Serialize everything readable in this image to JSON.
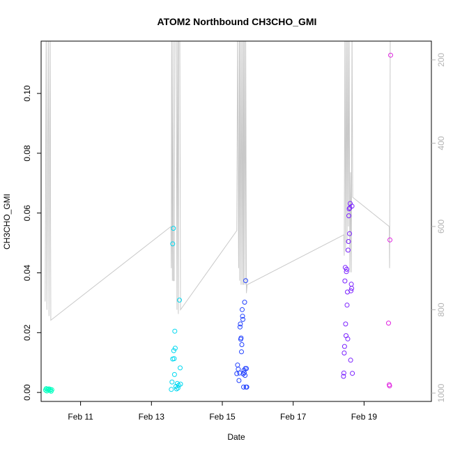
{
  "chart_data": {
    "type": "scatter",
    "title": "ATOM2 Northbound CH3CHO_GMI",
    "xlabel": "Date",
    "ylabel": "CH3CHO_GMI",
    "x_ticks": [
      "Feb 11",
      "Feb 13",
      "Feb 15",
      "Feb 17",
      "Feb 19"
    ],
    "y_ticks": [
      "0.00",
      "0.02",
      "0.04",
      "0.06",
      "0.08",
      "0.10"
    ],
    "y2_ticks": [
      "200",
      "400",
      "600",
      "800",
      "1000"
    ],
    "y2_reversed": true,
    "xlim": [
      "Feb 9 21:17",
      "Feb 20 21:36"
    ],
    "ylim": [
      -0.003,
      0.1175
    ],
    "y2lim": [
      1020,
      155
    ],
    "grid": false,
    "series": [
      {
        "kind": "points",
        "points": [
          {
            "x": "Feb 10 00:14",
            "y": 0.0008,
            "color": "#00ffc0"
          },
          {
            "x": "Feb 10 00:43",
            "y": 0.0013,
            "color": "#00ffc0"
          },
          {
            "x": "Feb 10 01:12",
            "y": 0.0005,
            "color": "#00ffc0"
          },
          {
            "x": "Feb 10 01:26",
            "y": 0.0011,
            "color": "#00ffc0"
          },
          {
            "x": "Feb 10 02:10",
            "y": 0.0009,
            "color": "#00ffc0"
          },
          {
            "x": "Feb 10 02:38",
            "y": 0.0012,
            "color": "#00ffc0"
          },
          {
            "x": "Feb 10 03:07",
            "y": 0.0007,
            "color": "#00ffc0"
          },
          {
            "x": "Feb 10 03:36",
            "y": 0.001,
            "color": "#00ffc0"
          },
          {
            "x": "Feb 10 04:05",
            "y": 0.0004,
            "color": "#00ffc0"
          },
          {
            "x": "Feb 10 04:34",
            "y": 0.0009,
            "color": "#00ffc0"
          },
          {
            "x": "Feb 13 13:26",
            "y": 0.001,
            "color": "#00d8f0"
          },
          {
            "x": "Feb 13 13:55",
            "y": 0.0035,
            "color": "#00d8f0"
          },
          {
            "x": "Feb 13 14:24",
            "y": 0.0112,
            "color": "#00d8f0"
          },
          {
            "x": "Feb 13 14:24",
            "y": 0.0497,
            "color": "#00d8f0"
          },
          {
            "x": "Feb 13 14:53",
            "y": 0.0549,
            "color": "#00d8f0"
          },
          {
            "x": "Feb 13 15:07",
            "y": 0.014,
            "color": "#00d8f0"
          },
          {
            "x": "Feb 13 15:22",
            "y": 0.0113,
            "color": "#00d8f0"
          },
          {
            "x": "Feb 13 15:36",
            "y": 0.006,
            "color": "#00d8f0"
          },
          {
            "x": "Feb 13 15:50",
            "y": 0.0205,
            "color": "#00d8f0"
          },
          {
            "x": "Feb 13 16:05",
            "y": 0.0148,
            "color": "#00d8f0"
          },
          {
            "x": "Feb 13 16:34",
            "y": 0.002,
            "color": "#00d8f0"
          },
          {
            "x": "Feb 13 17:02",
            "y": 0.0012,
            "color": "#00d8f0"
          },
          {
            "x": "Feb 13 17:31",
            "y": 0.003,
            "color": "#00d8f0"
          },
          {
            "x": "Feb 13 18:00",
            "y": 0.0015,
            "color": "#00d8f0"
          },
          {
            "x": "Feb 13 18:29",
            "y": 0.0024,
            "color": "#00d8f0"
          },
          {
            "x": "Feb 13 18:58",
            "y": 0.0309,
            "color": "#00d8f0"
          },
          {
            "x": "Feb 13 19:26",
            "y": 0.0082,
            "color": "#00d8f0"
          },
          {
            "x": "Feb 13 19:41",
            "y": 0.0028,
            "color": "#00d8f0"
          },
          {
            "x": "Feb 15 09:50",
            "y": 0.0063,
            "color": "#2040ff"
          },
          {
            "x": "Feb 15 10:19",
            "y": 0.0092,
            "color": "#2040ff"
          },
          {
            "x": "Feb 15 10:48",
            "y": 0.0078,
            "color": "#2040ff"
          },
          {
            "x": "Feb 15 11:17",
            "y": 0.004,
            "color": "#2040ff"
          },
          {
            "x": "Feb 15 11:46",
            "y": 0.0065,
            "color": "#2040ff"
          },
          {
            "x": "Feb 15 12:00",
            "y": 0.0219,
            "color": "#2040ff"
          },
          {
            "x": "Feb 15 12:14",
            "y": 0.0229,
            "color": "#2040ff"
          },
          {
            "x": "Feb 15 12:29",
            "y": 0.0178,
            "color": "#2040ff"
          },
          {
            "x": "Feb 15 12:43",
            "y": 0.0182,
            "color": "#2040ff"
          },
          {
            "x": "Feb 15 12:58",
            "y": 0.0136,
            "color": "#2040ff"
          },
          {
            "x": "Feb 15 13:12",
            "y": 0.016,
            "color": "#2040ff"
          },
          {
            "x": "Feb 15 13:26",
            "y": 0.0277,
            "color": "#2040ff"
          },
          {
            "x": "Feb 15 13:41",
            "y": 0.0255,
            "color": "#2040ff"
          },
          {
            "x": "Feb 15 13:55",
            "y": 0.0244,
            "color": "#2040ff"
          },
          {
            "x": "Feb 15 14:10",
            "y": 0.0062,
            "color": "#2040ff"
          },
          {
            "x": "Feb 15 14:24",
            "y": 0.0018,
            "color": "#2040ff"
          },
          {
            "x": "Feb 15 14:38",
            "y": 0.0074,
            "color": "#2040ff"
          },
          {
            "x": "Feb 15 14:53",
            "y": 0.0066,
            "color": "#2040ff"
          },
          {
            "x": "Feb 15 15:07",
            "y": 0.0302,
            "color": "#2040ff"
          },
          {
            "x": "Feb 15 15:22",
            "y": 0.0057,
            "color": "#2040ff"
          },
          {
            "x": "Feb 15 15:36",
            "y": 0.008,
            "color": "#2040ff"
          },
          {
            "x": "Feb 15 15:50",
            "y": 0.0374,
            "color": "#2040ff"
          },
          {
            "x": "Feb 15 16:05",
            "y": 0.0018,
            "color": "#2040ff"
          },
          {
            "x": "Feb 15 16:19",
            "y": 0.008,
            "color": "#2040ff"
          },
          {
            "x": "Feb 15 16:34",
            "y": 0.0018,
            "color": "#2040ff"
          },
          {
            "x": "Feb 18 10:05",
            "y": 0.0054,
            "color": "#7a20ff"
          },
          {
            "x": "Feb 18 10:19",
            "y": 0.0065,
            "color": "#7a20ff"
          },
          {
            "x": "Feb 18 10:34",
            "y": 0.0132,
            "color": "#7a20ff"
          },
          {
            "x": "Feb 18 10:48",
            "y": 0.0154,
            "color": "#7a20ff"
          },
          {
            "x": "Feb 18 11:02",
            "y": 0.0373,
            "color": "#7a20ff"
          },
          {
            "x": "Feb 18 11:17",
            "y": 0.0418,
            "color": "#7a20ff"
          },
          {
            "x": "Feb 18 11:31",
            "y": 0.0229,
            "color": "#7a20ff"
          },
          {
            "x": "Feb 18 11:46",
            "y": 0.019,
            "color": "#7a20ff"
          },
          {
            "x": "Feb 18 12:00",
            "y": 0.0404,
            "color": "#7a20ff"
          },
          {
            "x": "Feb 18 12:14",
            "y": 0.0412,
            "color": "#7a20ff"
          },
          {
            "x": "Feb 18 12:29",
            "y": 0.0292,
            "color": "#7a20ff"
          },
          {
            "x": "Feb 18 12:43",
            "y": 0.0336,
            "color": "#7a20ff"
          },
          {
            "x": "Feb 18 12:58",
            "y": 0.0179,
            "color": "#7a20ff"
          },
          {
            "x": "Feb 18 13:12",
            "y": 0.0476,
            "color": "#7a20ff"
          },
          {
            "x": "Feb 18 13:26",
            "y": 0.0505,
            "color": "#7a20ff"
          },
          {
            "x": "Feb 18 13:41",
            "y": 0.0591,
            "color": "#7a20ff"
          },
          {
            "x": "Feb 18 13:55",
            "y": 0.0614,
            "color": "#7a20ff"
          },
          {
            "x": "Feb 18 14:10",
            "y": 0.0531,
            "color": "#7a20ff"
          },
          {
            "x": "Feb 18 14:24",
            "y": 0.0617,
            "color": "#7a20ff"
          },
          {
            "x": "Feb 18 14:38",
            "y": 0.0632,
            "color": "#7a20ff"
          },
          {
            "x": "Feb 18 14:53",
            "y": 0.0108,
            "color": "#7a20ff"
          },
          {
            "x": "Feb 18 15:07",
            "y": 0.034,
            "color": "#7a20ff"
          },
          {
            "x": "Feb 18 15:22",
            "y": 0.0362,
            "color": "#7a20ff"
          },
          {
            "x": "Feb 18 15:36",
            "y": 0.0348,
            "color": "#7a20ff"
          },
          {
            "x": "Feb 18 15:50",
            "y": 0.0623,
            "color": "#7a20ff"
          },
          {
            "x": "Feb 18 16:05",
            "y": 0.0064,
            "color": "#7a20ff"
          },
          {
            "x": "Feb 19 16:34",
            "y": 0.0232,
            "color": "#e020e0"
          },
          {
            "x": "Feb 19 17:02",
            "y": 0.0026,
            "color": "#e020e0"
          },
          {
            "x": "Feb 19 17:17",
            "y": 0.0022,
            "color": "#e020e0"
          },
          {
            "x": "Feb 19 17:31",
            "y": 0.051,
            "color": "#e020e0"
          },
          {
            "x": "Feb 19 18:00",
            "y": 0.1128,
            "color": "#e020e0"
          }
        ]
      },
      {
        "kind": "line",
        "color": "#c8c8c8",
        "axis": "right",
        "points": [
          {
            "x": "Feb 10 00:00",
            "y": 780
          },
          {
            "x": "Feb 10 00:43",
            "y": 130
          },
          {
            "x": "Feb 10 01:12",
            "y": 800
          },
          {
            "x": "Feb 10 02:10",
            "y": 130
          },
          {
            "x": "Feb 10 02:38",
            "y": 815
          },
          {
            "x": "Feb 10 03:22",
            "y": 130
          },
          {
            "x": "Feb 10 03:50",
            "y": 825
          },
          {
            "x": "Feb 13 13:12",
            "y": 600
          },
          {
            "x": "Feb 13 13:26",
            "y": 700
          },
          {
            "x": "Feb 13 13:41",
            "y": 130
          },
          {
            "x": "Feb 13 14:10",
            "y": 730
          },
          {
            "x": "Feb 13 14:38",
            "y": 130
          },
          {
            "x": "Feb 13 14:53",
            "y": 730
          },
          {
            "x": "Feb 13 15:22",
            "y": 730
          },
          {
            "x": "Feb 13 15:50",
            "y": 130
          },
          {
            "x": "Feb 13 16:19",
            "y": 130
          },
          {
            "x": "Feb 13 16:48",
            "y": 130
          },
          {
            "x": "Feb 13 17:17",
            "y": 800
          },
          {
            "x": "Feb 13 17:46",
            "y": 130
          },
          {
            "x": "Feb 13 18:14",
            "y": 810
          },
          {
            "x": "Feb 13 18:29",
            "y": 130
          },
          {
            "x": "Feb 13 19:12",
            "y": 130
          },
          {
            "x": "Feb 13 19:41",
            "y": 800
          },
          {
            "x": "Feb 15 09:50",
            "y": 610
          },
          {
            "x": "Feb 15 10:19",
            "y": 130
          },
          {
            "x": "Feb 15 11:02",
            "y": 700
          },
          {
            "x": "Feb 15 11:31",
            "y": 130
          },
          {
            "x": "Feb 15 11:46",
            "y": 730
          },
          {
            "x": "Feb 15 12:14",
            "y": 130
          },
          {
            "x": "Feb 15 12:43",
            "y": 740
          },
          {
            "x": "Feb 15 13:12",
            "y": 130
          },
          {
            "x": "Feb 15 13:41",
            "y": 740
          },
          {
            "x": "Feb 15 14:10",
            "y": 130
          },
          {
            "x": "Feb 15 14:24",
            "y": 740
          },
          {
            "x": "Feb 15 14:53",
            "y": 130
          },
          {
            "x": "Feb 15 15:22",
            "y": 740
          },
          {
            "x": "Feb 15 15:50",
            "y": 130
          },
          {
            "x": "Feb 15 16:19",
            "y": 760
          },
          {
            "x": "Feb 15 16:48",
            "y": 740
          },
          {
            "x": "Feb 18 10:19",
            "y": 620
          },
          {
            "x": "Feb 18 10:34",
            "y": 670
          },
          {
            "x": "Feb 18 11:02",
            "y": 130
          },
          {
            "x": "Feb 18 11:31",
            "y": 660
          },
          {
            "x": "Feb 18 12:00",
            "y": 130
          },
          {
            "x": "Feb 18 12:29",
            "y": 640
          },
          {
            "x": "Feb 18 12:58",
            "y": 130
          },
          {
            "x": "Feb 18 13:26",
            "y": 600
          },
          {
            "x": "Feb 18 13:55",
            "y": 130
          },
          {
            "x": "Feb 18 14:24",
            "y": 710
          },
          {
            "x": "Feb 18 14:53",
            "y": 470
          },
          {
            "x": "Feb 18 15:22",
            "y": 710
          },
          {
            "x": "Feb 18 15:50",
            "y": 130
          },
          {
            "x": "Feb 18 16:19",
            "y": 530
          },
          {
            "x": "Feb 19 17:02",
            "y": 600
          },
          {
            "x": "Feb 19 17:17",
            "y": 700
          },
          {
            "x": "Feb 19 17:46",
            "y": 130
          }
        ]
      }
    ]
  }
}
